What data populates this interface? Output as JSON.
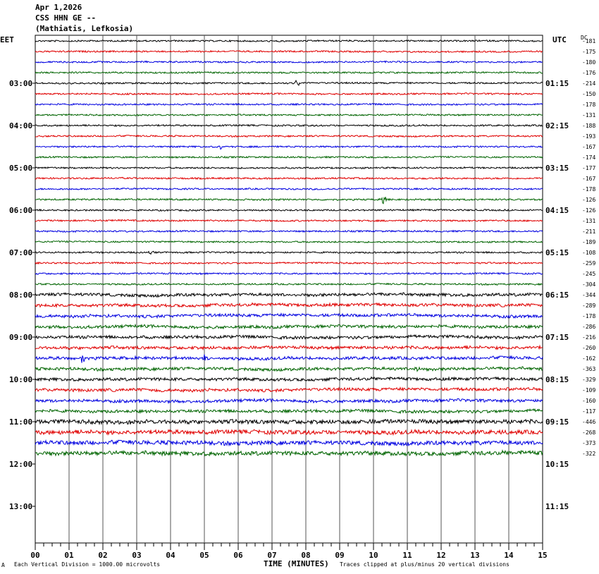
{
  "header": {
    "date": "Apr 1,2026",
    "station": "CSS HHN GE --",
    "location": "(Mathiatis, Lefkosia)"
  },
  "left_tz": "EET",
  "right_tz": "UTC",
  "dc_label": "DC",
  "footer": {
    "scale_note": "Each Vertical Division = 1000.00 microvolts",
    "xlabel": "TIME (MINUTES)",
    "clip_note": "Traces clipped at plus/minus 20 vertical divisions",
    "corner_mark": "A"
  },
  "colors": {
    "trace_cycle": [
      "#000000",
      "#e00000",
      "#0000e0",
      "#006400"
    ],
    "grid": "#000000"
  },
  "chart_data": {
    "type": "line",
    "title": "",
    "xlabel": "TIME (MINUTES)",
    "xlim": [
      0,
      15
    ],
    "x_ticks": [
      "00",
      "01",
      "02",
      "03",
      "04",
      "05",
      "06",
      "07",
      "08",
      "09",
      "10",
      "11",
      "12",
      "13",
      "14",
      "15"
    ],
    "hour_labels_left": [
      "03:00",
      "04:00",
      "05:00",
      "06:00",
      "07:00",
      "08:00",
      "09:00",
      "10:00",
      "11:00",
      "12:00",
      "13:00"
    ],
    "hour_labels_right": [
      "01:15",
      "02:15",
      "03:15",
      "04:15",
      "05:15",
      "06:15",
      "07:15",
      "08:15",
      "09:15",
      "10:15",
      "11:15"
    ],
    "dc_offsets": [
      -181,
      -175,
      -180,
      -176,
      -214,
      -150,
      -178,
      -131,
      -188,
      -193,
      -167,
      -174,
      -177,
      -167,
      -178,
      -126,
      -126,
      -131,
      -211,
      -189,
      -108,
      -259,
      -245,
      -304,
      -344,
      -289,
      -178,
      -286,
      -216,
      -260,
      -162,
      -363,
      -329,
      -109,
      -160,
      -117,
      -446,
      -268,
      -373,
      -322
    ],
    "trace_noise_level": [
      1,
      1,
      1,
      1,
      1,
      1,
      1,
      1,
      1,
      1,
      1,
      1,
      1,
      1,
      1,
      1,
      1,
      1,
      1,
      1,
      1,
      1,
      1,
      1,
      2,
      2,
      2,
      2,
      2,
      2,
      2,
      2,
      2,
      2,
      2,
      2,
      3,
      3,
      3,
      3
    ],
    "events": [
      {
        "trace": 4,
        "minute": 7.75,
        "amplitude": 6
      },
      {
        "trace": 10,
        "minute": 5.5,
        "amplitude": 4
      },
      {
        "trace": 15,
        "minute": 10.3,
        "amplitude": 8
      },
      {
        "trace": 20,
        "minute": 3.4,
        "amplitude": 4
      },
      {
        "trace": 30,
        "minute": 1.4,
        "amplitude": 7
      },
      {
        "trace": 30,
        "minute": 5.0,
        "amplitude": 6
      },
      {
        "trace": 31,
        "minute": 11.3,
        "amplitude": 5
      }
    ]
  }
}
